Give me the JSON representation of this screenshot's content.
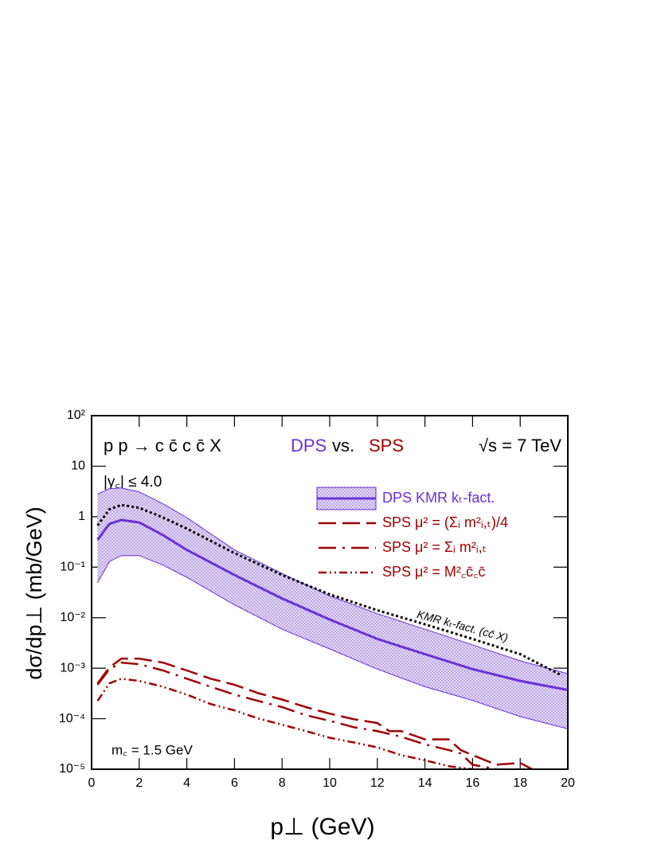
{
  "chart_data": {
    "type": "line",
    "title": "p p → c c̄ c c̄ X",
    "title_parts": [
      "DPS",
      "vs.",
      "SPS"
    ],
    "energy": "√s = 7 TeV",
    "rapidity_cut": "|y꜀| ≤ 4.0",
    "mass": "m꜀ = 1.5 GeV",
    "x_label": "p⊥  (GeV)",
    "y_label": "dσ/dp⊥  (mb/GeV)",
    "log_y": true,
    "xlim": [
      0,
      20
    ],
    "ylim": [
      1e-05,
      100
    ],
    "xticks": [
      0,
      2,
      4,
      6,
      8,
      10,
      12,
      14,
      16,
      18,
      20
    ],
    "yticks": [
      {
        "value": 100,
        "label": "10²"
      },
      10,
      1,
      {
        "value": 0.1,
        "label": "10⁻¹"
      },
      {
        "value": 0.01,
        "label": "10⁻²"
      },
      {
        "value": 0.001,
        "label": "10⁻³"
      },
      {
        "value": 0.0001,
        "label": "10⁻⁴"
      },
      {
        "value": 1e-05,
        "label": "10⁻⁵"
      }
    ],
    "series": [
      {
        "name": "DPS KMR kₜ-fact.",
        "color": "#6b2fd6",
        "style": "band",
        "legend": true,
        "x": [
          0.25,
          0.75,
          1.25,
          2,
          3,
          4,
          6,
          8,
          10,
          12,
          14,
          16,
          18,
          20
        ],
        "values": [
          0.35,
          0.72,
          0.86,
          0.77,
          0.43,
          0.22,
          0.07,
          0.024,
          0.0092,
          0.0038,
          0.0019,
          0.00096,
          0.00056,
          0.00037
        ],
        "lower": [
          0.049,
          0.13,
          0.17,
          0.17,
          0.11,
          0.063,
          0.018,
          0.0059,
          0.0024,
          0.00096,
          0.00043,
          0.00023,
          0.00011,
          6.3e-05
        ],
        "upper": [
          2.8,
          3.6,
          3.7,
          3.1,
          1.8,
          0.96,
          0.22,
          0.075,
          0.027,
          0.012,
          0.0059,
          0.0029,
          0.0014,
          0.00078
        ]
      },
      {
        "name": "KMR kₜ-fact. (cc̄ X)",
        "color": "#000000",
        "style": "dotted",
        "legend": false,
        "x": [
          0.25,
          0.75,
          1.25,
          2,
          3,
          4,
          6,
          8,
          10,
          12,
          14,
          16,
          18,
          19.75
        ],
        "values": [
          0.67,
          1.4,
          1.7,
          1.5,
          0.96,
          0.58,
          0.19,
          0.07,
          0.029,
          0.014,
          0.0074,
          0.0038,
          0.0019,
          0.00072
        ]
      },
      {
        "name": "SPS   μ² = (Σᵢ m²ᵢ,ₜ)/4",
        "color": "#a00000",
        "style": "long-dash",
        "legend": true,
        "x": [
          0.25,
          0.75,
          1.25,
          2,
          3,
          4,
          5,
          6,
          7,
          8,
          9,
          10,
          11,
          12,
          12.5,
          13,
          14,
          15,
          15.5,
          16,
          17,
          18,
          18.5
        ],
        "values": [
          0.0005,
          0.00104,
          0.00155,
          0.00155,
          0.00129,
          0.0009,
          0.00062,
          0.00047,
          0.00032,
          0.00024,
          0.00017,
          0.000126,
          9.8e-05,
          8.2e-05,
          5.7e-05,
          5.7e-05,
          3.9e-05,
          3.9e-05,
          2.4e-05,
          1.9e-05,
          1.23e-05,
          1.33e-05,
          1e-05
        ]
      },
      {
        "name": "SPS   μ² = Σᵢ m²ᵢ,ₜ",
        "color": "#a00000",
        "style": "dash-dot",
        "legend": true,
        "x": [
          0.25,
          0.75,
          1.25,
          2,
          3,
          4,
          5,
          6,
          7,
          8,
          9,
          10,
          11,
          12,
          13,
          14,
          15,
          15.5,
          16,
          17
        ],
        "values": [
          0.00047,
          0.00096,
          0.00129,
          0.0012,
          0.0009,
          0.00062,
          0.00043,
          0.0003,
          0.000225,
          0.00017,
          0.000117,
          9.1e-05,
          6.8e-05,
          5.7e-05,
          4.4e-05,
          3.1e-05,
          2.4e-05,
          2.05e-05,
          1.23e-05,
          1e-05
        ]
      },
      {
        "name": "SPS   μ² = M²꜀c̄꜀c̄",
        "color": "#a00000",
        "style": "dash-dot-dot",
        "legend": true,
        "x": [
          0.25,
          0.75,
          1.25,
          2,
          3,
          4,
          5,
          6,
          7,
          8,
          9,
          10,
          11,
          12,
          13,
          14,
          15,
          16
        ],
        "values": [
          0.000225,
          0.0005,
          0.00062,
          0.00056,
          0.00043,
          0.0003,
          0.000195,
          0.000146,
          0.000101,
          7.6e-05,
          5.7e-05,
          4.2e-05,
          3.4e-05,
          2.7e-05,
          1.9e-05,
          1.5e-05,
          1.15e-05,
          1e-05
        ]
      }
    ]
  }
}
